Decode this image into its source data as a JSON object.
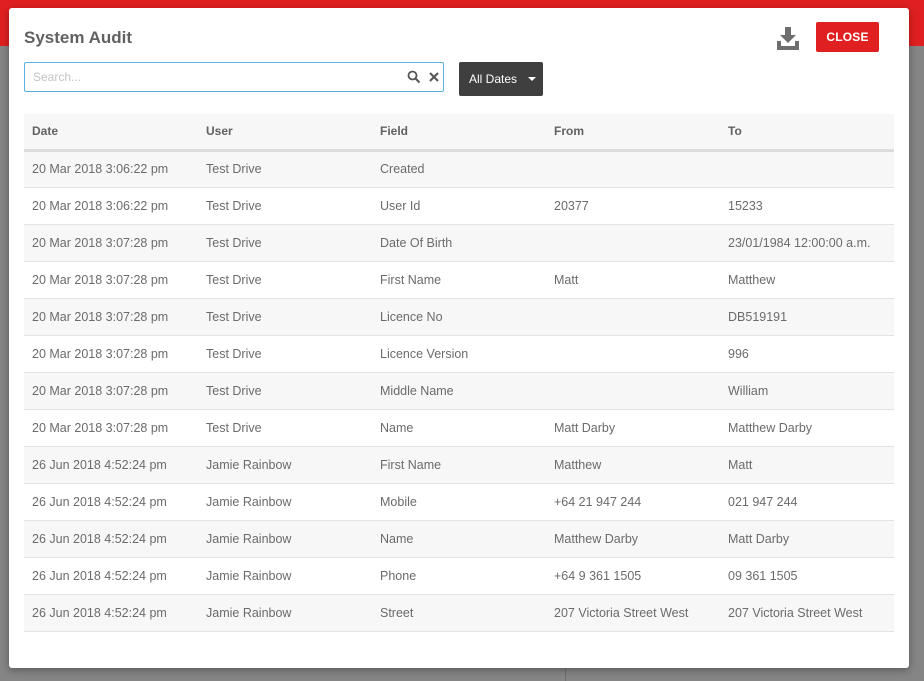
{
  "dialog": {
    "title": "System Audit",
    "close_label": "CLOSE",
    "download_icon": "download-icon"
  },
  "search": {
    "placeholder": "Search...",
    "value": ""
  },
  "date_filter": {
    "selected": "All Dates"
  },
  "table": {
    "columns": [
      "Date",
      "User",
      "Field",
      "From",
      "To"
    ],
    "rows": [
      [
        "20 Mar 2018 3:06:22 pm",
        "Test Drive",
        "Created",
        "",
        ""
      ],
      [
        "20 Mar 2018 3:06:22 pm",
        "Test Drive",
        "User Id",
        "20377",
        "15233"
      ],
      [
        "20 Mar 2018 3:07:28 pm",
        "Test Drive",
        "Date Of Birth",
        "",
        "23/01/1984 12:00:00 a.m."
      ],
      [
        "20 Mar 2018 3:07:28 pm",
        "Test Drive",
        "First Name",
        "Matt",
        "Matthew"
      ],
      [
        "20 Mar 2018 3:07:28 pm",
        "Test Drive",
        "Licence No",
        "",
        "DB519191"
      ],
      [
        "20 Mar 2018 3:07:28 pm",
        "Test Drive",
        "Licence Version",
        "",
        "996"
      ],
      [
        "20 Mar 2018 3:07:28 pm",
        "Test Drive",
        "Middle Name",
        "",
        "William"
      ],
      [
        "20 Mar 2018 3:07:28 pm",
        "Test Drive",
        "Name",
        "Matt Darby",
        "Matthew Darby"
      ],
      [
        "26 Jun 2018 4:52:24 pm",
        "Jamie Rainbow",
        "First Name",
        "Matthew",
        "Matt"
      ],
      [
        "26 Jun 2018 4:52:24 pm",
        "Jamie Rainbow",
        "Mobile",
        "+64 21 947 244",
        "021 947 244"
      ],
      [
        "26 Jun 2018 4:52:24 pm",
        "Jamie Rainbow",
        "Name",
        "Matthew Darby",
        "Matt Darby"
      ],
      [
        "26 Jun 2018 4:52:24 pm",
        "Jamie Rainbow",
        "Phone",
        "+64 9 361 1505",
        "09 361 1505"
      ],
      [
        "26 Jun 2018 4:52:24 pm",
        "Jamie Rainbow",
        "Street",
        "207 Victoria Street West",
        "207 Victoria Street West"
      ]
    ]
  },
  "colors": {
    "accent": "#e02020",
    "button_dark": "#3f3f3f",
    "focus_border": "#5bb2e0"
  }
}
